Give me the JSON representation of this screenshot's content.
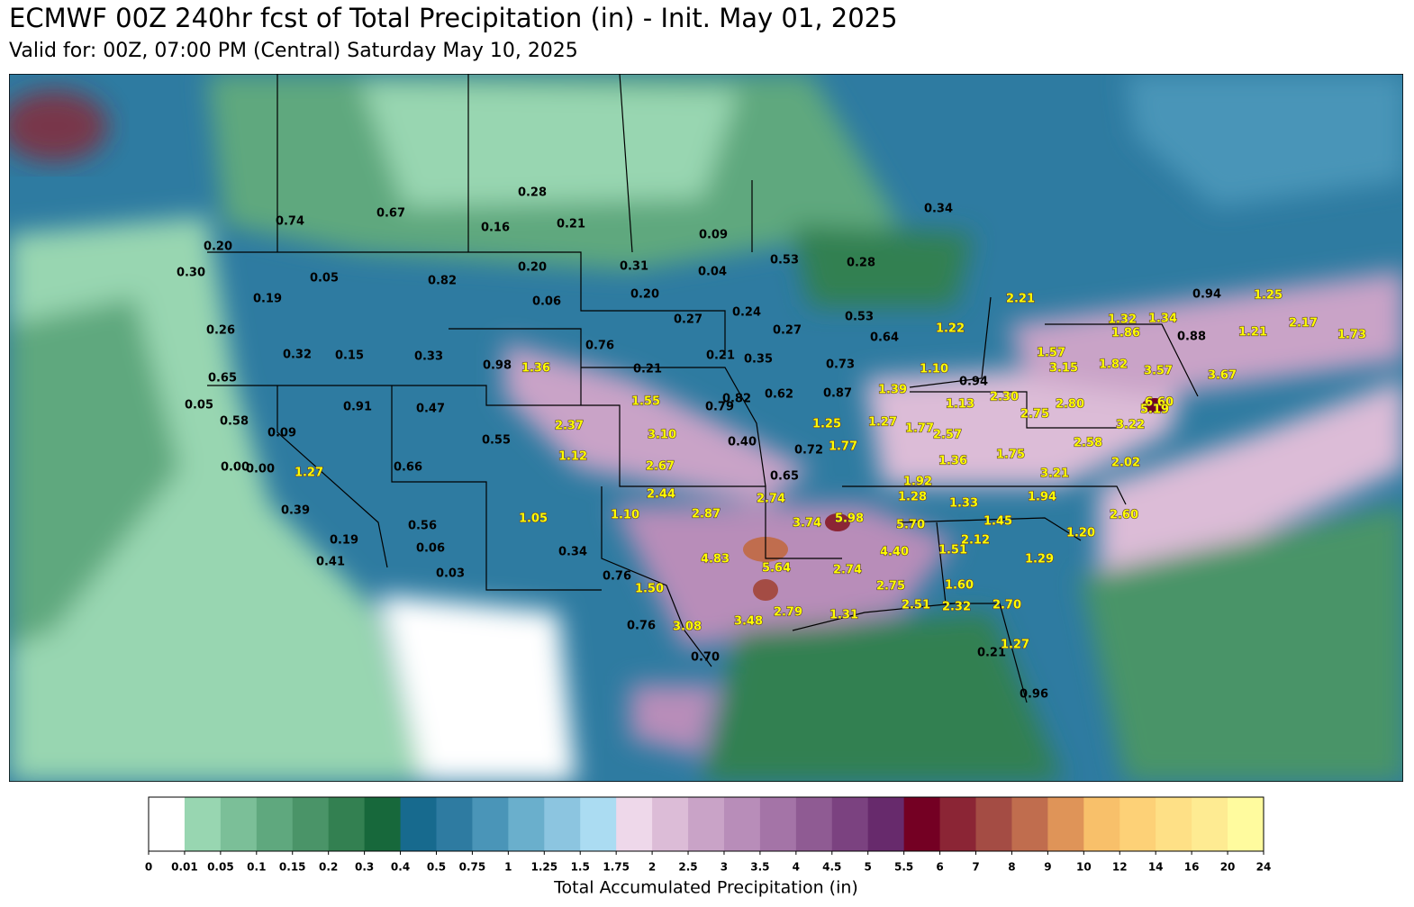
{
  "header": {
    "title": "ECMWF 00Z 240hr fcst of Total Precipitation (in) - Init. May 01, 2025",
    "subtitle": "Valid for: 00Z, 07:00 PM (Central) Saturday May 10, 2025"
  },
  "map": {
    "labels": [
      {
        "text": "0.74",
        "color": "black"
      },
      {
        "text": "0.67",
        "color": "black"
      },
      {
        "text": "0.28",
        "color": "black"
      },
      {
        "text": "0.16",
        "color": "black"
      },
      {
        "text": "0.21",
        "color": "black"
      },
      {
        "text": "0.09",
        "color": "black"
      },
      {
        "text": "0.34",
        "color": "black"
      },
      {
        "text": "0.20",
        "color": "black"
      },
      {
        "text": "0.30",
        "color": "black"
      },
      {
        "text": "0.05",
        "color": "black"
      },
      {
        "text": "0.82",
        "color": "black"
      },
      {
        "text": "0.20",
        "color": "black"
      },
      {
        "text": "0.31",
        "color": "black"
      },
      {
        "text": "0.04",
        "color": "black"
      },
      {
        "text": "0.53",
        "color": "black"
      },
      {
        "text": "0.28",
        "color": "black"
      },
      {
        "text": "0.19",
        "color": "black"
      },
      {
        "text": "0.06",
        "color": "black"
      },
      {
        "text": "0.20",
        "color": "black"
      },
      {
        "text": "0.24",
        "color": "black"
      },
      {
        "text": "0.53",
        "color": "black"
      },
      {
        "text": "0.27",
        "color": "black"
      },
      {
        "text": "0.94",
        "color": "black"
      },
      {
        "text": "0.26",
        "color": "black"
      },
      {
        "text": "0.27",
        "color": "black"
      },
      {
        "text": "0.76",
        "color": "black"
      },
      {
        "text": "0.64",
        "color": "black"
      },
      {
        "text": "0.88",
        "color": "black"
      },
      {
        "text": "0.32",
        "color": "black"
      },
      {
        "text": "0.15",
        "color": "black"
      },
      {
        "text": "0.33",
        "color": "black"
      },
      {
        "text": "0.98",
        "color": "black"
      },
      {
        "text": "0.21",
        "color": "black"
      },
      {
        "text": "0.21",
        "color": "black"
      },
      {
        "text": "0.35",
        "color": "black"
      },
      {
        "text": "0.73",
        "color": "black"
      },
      {
        "text": "0.65",
        "color": "black"
      },
      {
        "text": "0.94",
        "color": "black"
      },
      {
        "text": "0.05",
        "color": "black"
      },
      {
        "text": "0.91",
        "color": "black"
      },
      {
        "text": "0.47",
        "color": "black"
      },
      {
        "text": "0.82",
        "color": "black"
      },
      {
        "text": "0.79",
        "color": "black"
      },
      {
        "text": "0.62",
        "color": "black"
      },
      {
        "text": "0.87",
        "color": "black"
      },
      {
        "text": "0.58",
        "color": "black"
      },
      {
        "text": "0.09",
        "color": "black"
      },
      {
        "text": "0.55",
        "color": "black"
      },
      {
        "text": "0.40",
        "color": "black"
      },
      {
        "text": "0.72",
        "color": "black"
      },
      {
        "text": "0.00",
        "color": "black"
      },
      {
        "text": "0.00",
        "color": "black"
      },
      {
        "text": "0.66",
        "color": "black"
      },
      {
        "text": "0.65",
        "color": "black"
      },
      {
        "text": "0.39",
        "color": "black"
      },
      {
        "text": "0.56",
        "color": "black"
      },
      {
        "text": "0.34",
        "color": "black"
      },
      {
        "text": "0.19",
        "color": "black"
      },
      {
        "text": "0.06",
        "color": "black"
      },
      {
        "text": "0.41",
        "color": "black"
      },
      {
        "text": "0.03",
        "color": "black"
      },
      {
        "text": "0.76",
        "color": "black"
      },
      {
        "text": "0.76",
        "color": "black"
      },
      {
        "text": "0.70",
        "color": "black"
      },
      {
        "text": "0.21",
        "color": "black"
      },
      {
        "text": "0.96",
        "color": "black"
      },
      {
        "text": "2.21",
        "color": "yellow"
      },
      {
        "text": "1.22",
        "color": "yellow"
      },
      {
        "text": "1.32",
        "color": "yellow"
      },
      {
        "text": "1.34",
        "color": "yellow"
      },
      {
        "text": "1.25",
        "color": "yellow"
      },
      {
        "text": "1.86",
        "color": "yellow"
      },
      {
        "text": "1.21",
        "color": "yellow"
      },
      {
        "text": "2.17",
        "color": "yellow"
      },
      {
        "text": "1.73",
        "color": "yellow"
      },
      {
        "text": "1.57",
        "color": "yellow"
      },
      {
        "text": "1.82",
        "color": "yellow"
      },
      {
        "text": "3.15",
        "color": "yellow"
      },
      {
        "text": "3.57",
        "color": "yellow"
      },
      {
        "text": "3.67",
        "color": "yellow"
      },
      {
        "text": "1.10",
        "color": "yellow"
      },
      {
        "text": "1.36",
        "color": "yellow"
      },
      {
        "text": "1.39",
        "color": "yellow"
      },
      {
        "text": "2.30",
        "color": "yellow"
      },
      {
        "text": "6.60",
        "color": "yellow"
      },
      {
        "text": "1.55",
        "color": "yellow"
      },
      {
        "text": "1.13",
        "color": "yellow"
      },
      {
        "text": "2.80",
        "color": "yellow"
      },
      {
        "text": "5.19",
        "color": "yellow"
      },
      {
        "text": "2.37",
        "color": "yellow"
      },
      {
        "text": "1.25",
        "color": "yellow"
      },
      {
        "text": "1.27",
        "color": "yellow"
      },
      {
        "text": "1.77",
        "color": "yellow"
      },
      {
        "text": "2.57",
        "color": "yellow"
      },
      {
        "text": "2.75",
        "color": "yellow"
      },
      {
        "text": "3.22",
        "color": "yellow"
      },
      {
        "text": "3.10",
        "color": "yellow"
      },
      {
        "text": "1.77",
        "color": "yellow"
      },
      {
        "text": "2.58",
        "color": "yellow"
      },
      {
        "text": "1.12",
        "color": "yellow"
      },
      {
        "text": "1.75",
        "color": "yellow"
      },
      {
        "text": "1.36",
        "color": "yellow"
      },
      {
        "text": "2.02",
        "color": "yellow"
      },
      {
        "text": "2.67",
        "color": "yellow"
      },
      {
        "text": "3.21",
        "color": "yellow"
      },
      {
        "text": "1.92",
        "color": "yellow"
      },
      {
        "text": "2.44",
        "color": "yellow"
      },
      {
        "text": "2.74",
        "color": "yellow"
      },
      {
        "text": "1.28",
        "color": "yellow"
      },
      {
        "text": "1.33",
        "color": "yellow"
      },
      {
        "text": "1.94",
        "color": "yellow"
      },
      {
        "text": "1.10",
        "color": "yellow"
      },
      {
        "text": "2.87",
        "color": "yellow"
      },
      {
        "text": "3.74",
        "color": "yellow"
      },
      {
        "text": "5.98",
        "color": "yellow"
      },
      {
        "text": "5.70",
        "color": "yellow"
      },
      {
        "text": "1.45",
        "color": "yellow"
      },
      {
        "text": "2.60",
        "color": "yellow"
      },
      {
        "text": "1.05",
        "color": "yellow"
      },
      {
        "text": "1.20",
        "color": "yellow"
      },
      {
        "text": "2.12",
        "color": "yellow"
      },
      {
        "text": "1.51",
        "color": "yellow"
      },
      {
        "text": "4.40",
        "color": "yellow"
      },
      {
        "text": "4.83",
        "color": "yellow"
      },
      {
        "text": "5.64",
        "color": "yellow"
      },
      {
        "text": "2.74",
        "color": "yellow"
      },
      {
        "text": "1.29",
        "color": "yellow"
      },
      {
        "text": "1.50",
        "color": "yellow"
      },
      {
        "text": "2.75",
        "color": "yellow"
      },
      {
        "text": "1.60",
        "color": "yellow"
      },
      {
        "text": "2.51",
        "color": "yellow"
      },
      {
        "text": "2.32",
        "color": "yellow"
      },
      {
        "text": "2.70",
        "color": "yellow"
      },
      {
        "text": "3.08",
        "color": "yellow"
      },
      {
        "text": "3.48",
        "color": "yellow"
      },
      {
        "text": "2.79",
        "color": "yellow"
      },
      {
        "text": "1.31",
        "color": "yellow"
      },
      {
        "text": "1.27",
        "color": "yellow"
      },
      {
        "text": "1.27",
        "color": "yellow"
      }
    ]
  },
  "colorbar": {
    "label": "Total Accumulated Precipitation (in)",
    "ticks": [
      0,
      0.01,
      0.05,
      0.1,
      0.15,
      0.2,
      0.3,
      0.4,
      0.5,
      0.75,
      1,
      1.25,
      1.5,
      1.75,
      2,
      2.5,
      3,
      3.5,
      4,
      4.5,
      5,
      5.5,
      6,
      7,
      8,
      9,
      10,
      12,
      14,
      16,
      20,
      24
    ],
    "colors": [
      "#ffffff",
      "#98d6b1",
      "#7bbf98",
      "#5fa87e",
      "#4a9468",
      "#338051",
      "#17683b",
      "#176a8e",
      "#2e7ba1",
      "#4a95b8",
      "#6aafcc",
      "#8cc5e0",
      "#abdcf2",
      "#eed8ea",
      "#dcbcd7",
      "#c9a3c7",
      "#b88db9",
      "#a474a7",
      "#8f5b93",
      "#7b4280",
      "#672a6c",
      "#740023",
      "#8b2535",
      "#a44c44",
      "#c06d4e",
      "#df9458",
      "#f8c06a",
      "#fdd177",
      "#fee086",
      "#feeb92",
      "#fffb9e"
    ]
  }
}
